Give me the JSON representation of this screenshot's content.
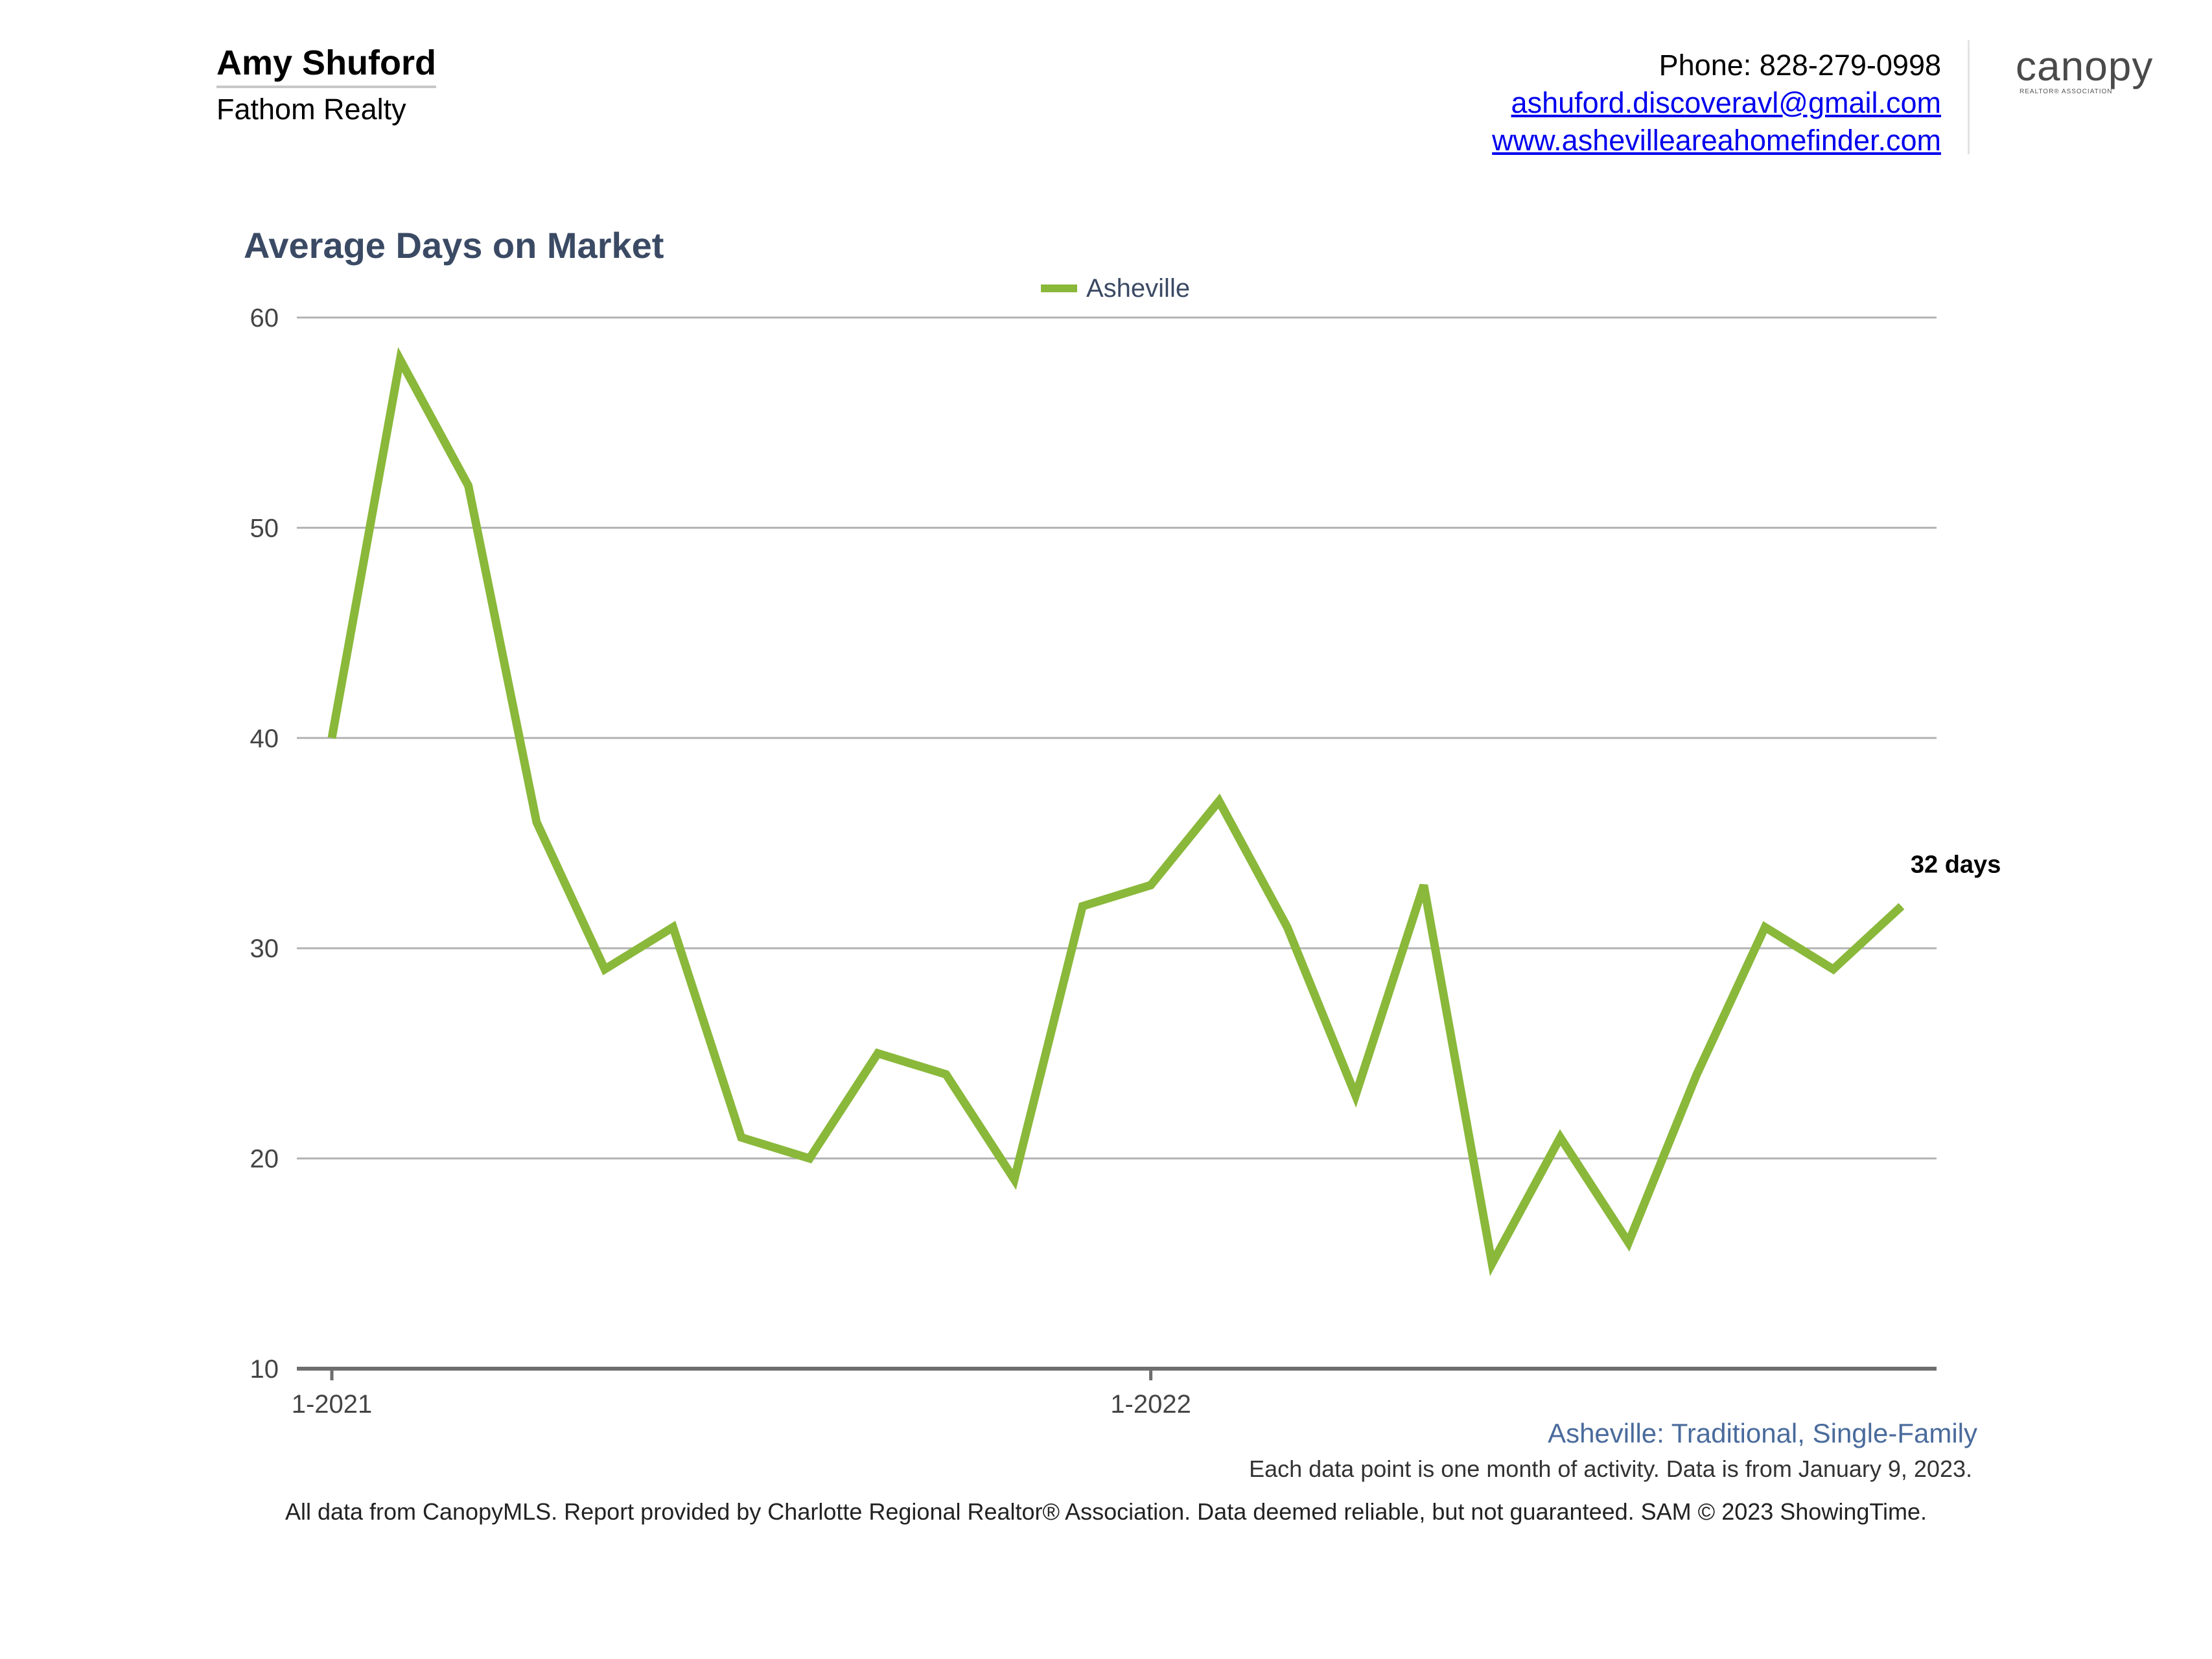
{
  "agent": {
    "name": "Amy Shuford",
    "company": "Fathom Realty"
  },
  "contact": {
    "phone": "Phone: 828-279-0998",
    "email": "ashuford.discoveravl@gmail.com",
    "website": "www.ashevilleareahomefinder.com"
  },
  "logo": {
    "word": "canopy",
    "subtext": "REALTOR® ASSOCIATION"
  },
  "chart_data": {
    "type": "line",
    "title": "Average Days on Market",
    "xlabel": "",
    "ylabel": "",
    "ylim": [
      10,
      60
    ],
    "yticks": [
      10,
      20,
      30,
      40,
      50,
      60
    ],
    "x_tick_labels": [
      {
        "index": 0,
        "label": "1-2021"
      },
      {
        "index": 12,
        "label": "1-2022"
      }
    ],
    "grid": true,
    "legend_position": "top-center",
    "end_label": "32 days",
    "series": [
      {
        "name": "Asheville",
        "color": "#8ab83a",
        "values": [
          40,
          58,
          52,
          36,
          29,
          31,
          21,
          20,
          25,
          24,
          19,
          32,
          33,
          37,
          31,
          23,
          33,
          15,
          21,
          16,
          24,
          31,
          29,
          32
        ]
      }
    ]
  },
  "subtitle": "Asheville: Traditional, Single-Family",
  "note": "Each data point is one month of activity. Data is from January 9, 2023.",
  "footer": "All data from CanopyMLS. Report provided by Charlotte Regional Realtor® Association. Data deemed reliable, but not guaranteed. SAM © 2023 ShowingTime."
}
